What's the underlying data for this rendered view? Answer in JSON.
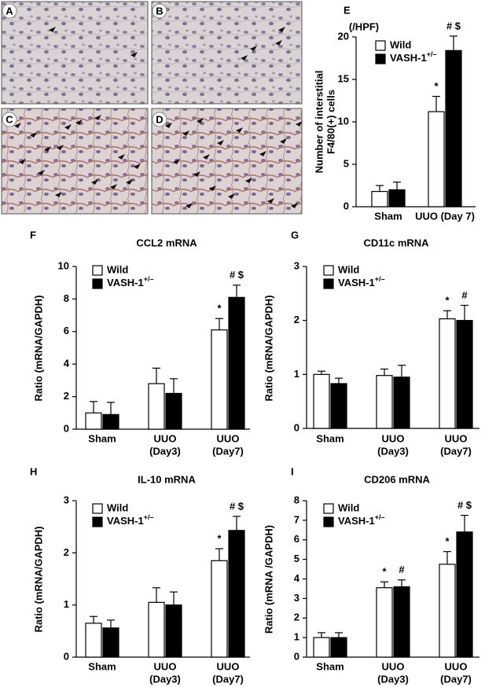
{
  "micrographs": {
    "labels": [
      "A",
      "B",
      "C",
      "D"
    ]
  },
  "chart_data": [
    {
      "type": "bar",
      "label": "E",
      "unit_label": "(/HPF)",
      "ylabel": [
        "Number of interstitial",
        "F4/80(+) cells"
      ],
      "categories": [
        "Sham",
        "UUO (Day 7)"
      ],
      "ylim": [
        0,
        20
      ],
      "yticks": [
        0,
        5,
        10,
        15,
        20
      ],
      "series": [
        {
          "name": "Wild",
          "color": "#ffffff",
          "values": [
            1.8,
            11.2
          ],
          "errors": [
            0.7,
            1.8
          ],
          "annotations": [
            null,
            "*"
          ]
        },
        {
          "name": "VASH-1+/–",
          "color": "#000000",
          "values": [
            2.0,
            18.4
          ],
          "errors": [
            0.9,
            1.7
          ],
          "annotations": [
            null,
            "# $"
          ]
        }
      ]
    },
    {
      "type": "bar",
      "label": "F",
      "title": "CCL2  mRNA",
      "ylabel": "Ratio (mRNA/GAPDH)",
      "categories": [
        [
          "Sham"
        ],
        [
          "UUO",
          "(Day3)"
        ],
        [
          "UUO",
          "(Day7)"
        ]
      ],
      "ylim": [
        0,
        10
      ],
      "yticks": [
        0,
        2,
        4,
        6,
        8,
        10
      ],
      "series": [
        {
          "name": "Wild",
          "color": "#ffffff",
          "values": [
            1.0,
            2.8,
            6.1
          ],
          "errors": [
            0.7,
            0.95,
            0.7
          ],
          "annotations": [
            null,
            null,
            "*"
          ]
        },
        {
          "name": "VASH-1+/–",
          "color": "#000000",
          "values": [
            0.9,
            2.2,
            8.1
          ],
          "errors": [
            0.75,
            0.9,
            0.75
          ],
          "annotations": [
            null,
            null,
            "# $"
          ]
        }
      ]
    },
    {
      "type": "bar",
      "label": "G",
      "title": "CD11c  mRNA",
      "ylabel": "Ratio (mRNA/GAPDH)",
      "categories": [
        [
          "Sham"
        ],
        [
          "UUO",
          "(Day3)"
        ],
        [
          "UUO",
          "(Day7)"
        ]
      ],
      "ylim": [
        0,
        3
      ],
      "yticks": [
        0,
        1,
        2,
        3
      ],
      "series": [
        {
          "name": "Wild",
          "color": "#ffffff",
          "values": [
            1.0,
            0.98,
            2.03
          ],
          "errors": [
            0.06,
            0.12,
            0.15
          ],
          "annotations": [
            null,
            null,
            "*"
          ]
        },
        {
          "name": "VASH-1+/–",
          "color": "#000000",
          "values": [
            0.83,
            0.95,
            2.0
          ],
          "errors": [
            0.1,
            0.22,
            0.28
          ],
          "annotations": [
            null,
            null,
            "#"
          ]
        }
      ]
    },
    {
      "type": "bar",
      "label": "H",
      "title": "IL-10  mRNA",
      "ylabel": "Ratio (mRNA/GAPDH)",
      "categories": [
        [
          "Sham"
        ],
        [
          "UUO",
          "(Day3)"
        ],
        [
          "UUO",
          "(Day7)"
        ]
      ],
      "ylim": [
        0,
        3
      ],
      "yticks": [
        0,
        1,
        2,
        3
      ],
      "series": [
        {
          "name": "Wild",
          "color": "#ffffff",
          "values": [
            0.65,
            1.05,
            1.85
          ],
          "errors": [
            0.13,
            0.28,
            0.23
          ],
          "annotations": [
            null,
            null,
            "*"
          ]
        },
        {
          "name": "VASH-1+/–",
          "color": "#000000",
          "values": [
            0.56,
            1.0,
            2.43
          ],
          "errors": [
            0.15,
            0.25,
            0.27
          ],
          "annotations": [
            null,
            null,
            "# $"
          ]
        }
      ]
    },
    {
      "type": "bar",
      "label": "I",
      "title": "CD206  mRNA",
      "ylabel": "Ratio (mRNA /GAPDH)",
      "categories": [
        [
          "Sham"
        ],
        [
          "UUO",
          "(Day3)"
        ],
        [
          "UUO",
          "(Day7)"
        ]
      ],
      "ylim": [
        0,
        8
      ],
      "yticks": [
        0,
        1,
        2,
        3,
        4,
        5,
        6,
        7,
        8
      ],
      "series": [
        {
          "name": "Wild",
          "color": "#ffffff",
          "values": [
            1.0,
            3.55,
            4.75
          ],
          "errors": [
            0.25,
            0.3,
            0.65
          ],
          "annotations": [
            null,
            "*",
            "*"
          ]
        },
        {
          "name": "VASH-1+/–",
          "color": "#000000",
          "values": [
            1.0,
            3.6,
            6.4
          ],
          "errors": [
            0.25,
            0.35,
            0.85
          ],
          "annotations": [
            null,
            "#",
            "# $"
          ]
        }
      ]
    }
  ]
}
